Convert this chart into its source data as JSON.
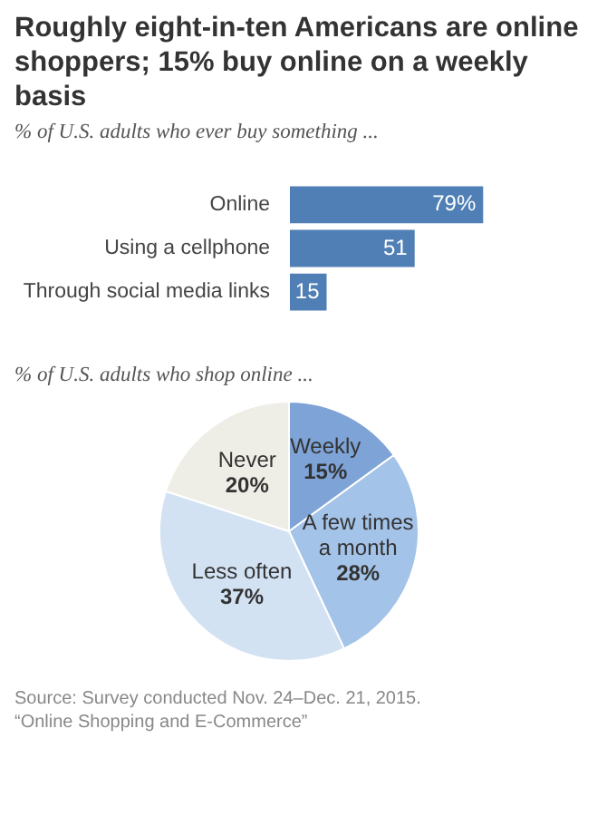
{
  "chart_data": [
    {
      "type": "bar",
      "orientation": "horizontal",
      "title": "Roughly eight-in-ten Americans are online shoppers; 15% buy online on a weekly basis",
      "subtitle": "% of U.S. adults who ever buy something ...",
      "categories": [
        "Online",
        "Using a cellphone",
        "Through social media links"
      ],
      "values": [
        79,
        51,
        15
      ],
      "color": "#4f7fb4",
      "value_labels": [
        "79%",
        "51",
        "15"
      ]
    },
    {
      "type": "pie",
      "subtitle": "% of U.S. adults who shop online ...",
      "categories": [
        "Weekly",
        "A few times a month",
        "Less often",
        "Never"
      ],
      "values": [
        15,
        28,
        37,
        20
      ],
      "colors": [
        "#7ea3d6",
        "#a4c3e8",
        "#d3e2f3",
        "#efeee6"
      ],
      "value_labels": [
        "15%",
        "28%",
        "37%",
        "20%"
      ],
      "annotations": [
        "Source: Survey conducted Nov. 24–Dec. 21, 2015.",
        "“Online Shopping and E-Commerce”"
      ]
    }
  ]
}
